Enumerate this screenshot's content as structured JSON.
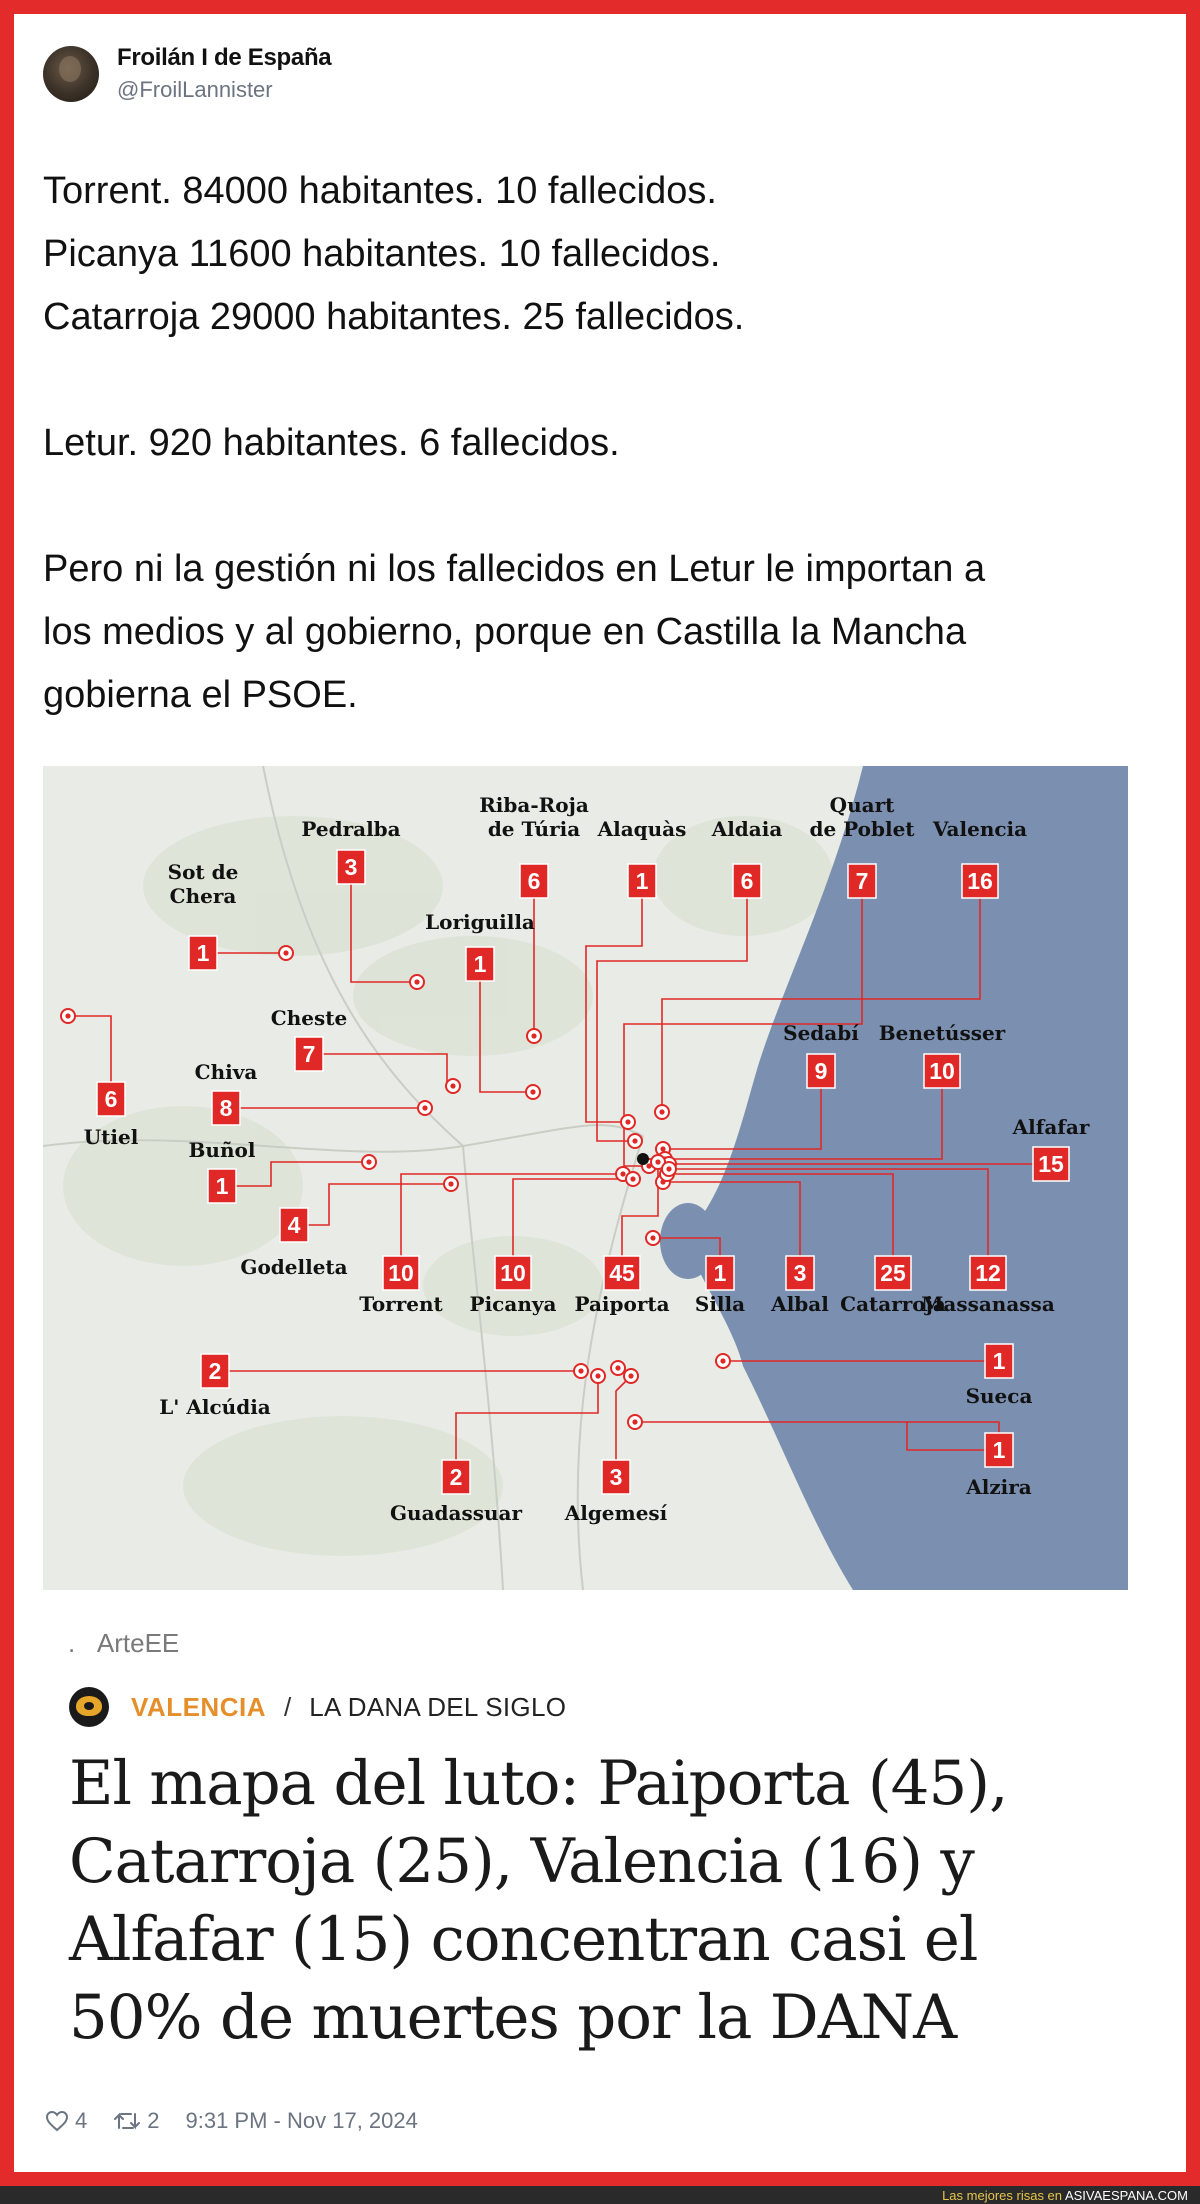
{
  "tweet": {
    "author_name": "Froilán I de España",
    "author_handle": "@FroilLannister",
    "lines": [
      "Torrent. 84000 habitantes. 10 fallecidos.",
      "Picanya 11600 habitantes. 10 fallecidos.",
      "Catarroja 29000 habitantes. 25 fallecidos.",
      "Letur. 920 habitantes. 6 fallecidos.",
      "Pero ni la gestión ni los fallecidos en Letur le importan a",
      "los medios y al gobierno, porque en Castilla la Mancha",
      "gobierna el PSOE."
    ],
    "likes": "4",
    "retweets": "2",
    "timestamp": "9:31 PM - Nov 17, 2024"
  },
  "map": {
    "colors": {
      "land": "#e9ece6",
      "sea": "#7b90b0",
      "accent": "#e02826"
    },
    "towns": [
      {
        "name_lines": [
          "Sot de",
          "Chera"
        ],
        "value": "1"
      },
      {
        "name_lines": [
          "Pedralba"
        ],
        "value": "3"
      },
      {
        "name_lines": [
          "Riba-Roja",
          "de Túria"
        ],
        "value": "6"
      },
      {
        "name_lines": [
          "Alaquàs"
        ],
        "value": "1"
      },
      {
        "name_lines": [
          "Aldaia"
        ],
        "value": "6"
      },
      {
        "name_lines": [
          "Quart",
          "de Poblet"
        ],
        "value": "7"
      },
      {
        "name_lines": [
          "Valencia"
        ],
        "value": "16"
      },
      {
        "name_lines": [
          "Loriguilla"
        ],
        "value": "1"
      },
      {
        "name_lines": [
          "Utiel"
        ],
        "value": "6"
      },
      {
        "name_lines": [
          "Cheste"
        ],
        "value": "7"
      },
      {
        "name_lines": [
          "Chiva"
        ],
        "value": "8"
      },
      {
        "name_lines": [
          "Buñol"
        ],
        "value": "1"
      },
      {
        "name_lines": [
          "Godelleta"
        ],
        "value": "4"
      },
      {
        "name_lines": [
          "Sedabí"
        ],
        "value": "9"
      },
      {
        "name_lines": [
          "Benetússer"
        ],
        "value": "10"
      },
      {
        "name_lines": [
          "Alfafar"
        ],
        "value": "15"
      },
      {
        "name_lines": [
          "Torrent"
        ],
        "value": "10"
      },
      {
        "name_lines": [
          "Picanya"
        ],
        "value": "10"
      },
      {
        "name_lines": [
          "Paiporta"
        ],
        "value": "45"
      },
      {
        "name_lines": [
          "Silla"
        ],
        "value": "1"
      },
      {
        "name_lines": [
          "Albal"
        ],
        "value": "3"
      },
      {
        "name_lines": [
          "Catarroja"
        ],
        "value": "25"
      },
      {
        "name_lines": [
          "Massanassa"
        ],
        "value": "12"
      },
      {
        "name_lines": [
          "L' Alcúdia"
        ],
        "value": "2"
      },
      {
        "name_lines": [
          "Sueca"
        ],
        "value": "1"
      },
      {
        "name_lines": [
          "Alzira"
        ],
        "value": "1"
      },
      {
        "name_lines": [
          "Guadassuar"
        ],
        "value": "2"
      },
      {
        "name_lines": [
          "Algemesí"
        ],
        "value": "3"
      }
    ]
  },
  "article": {
    "caption_prefix": ".",
    "caption": "ArteEE",
    "section": "VALENCIA",
    "separator": "/",
    "subsection": "LA DANA DEL SIGLO",
    "headline_lines": [
      "El mapa del luto: Paiporta (45),",
      "Catarroja (25), Valencia (16) y",
      "Alfafar (15) concentran casi el",
      "50% de muertes por la DANA"
    ]
  },
  "watermark": {
    "prefix": "Las mejores risas en",
    "site": "ASIVAESPANA.COM"
  }
}
